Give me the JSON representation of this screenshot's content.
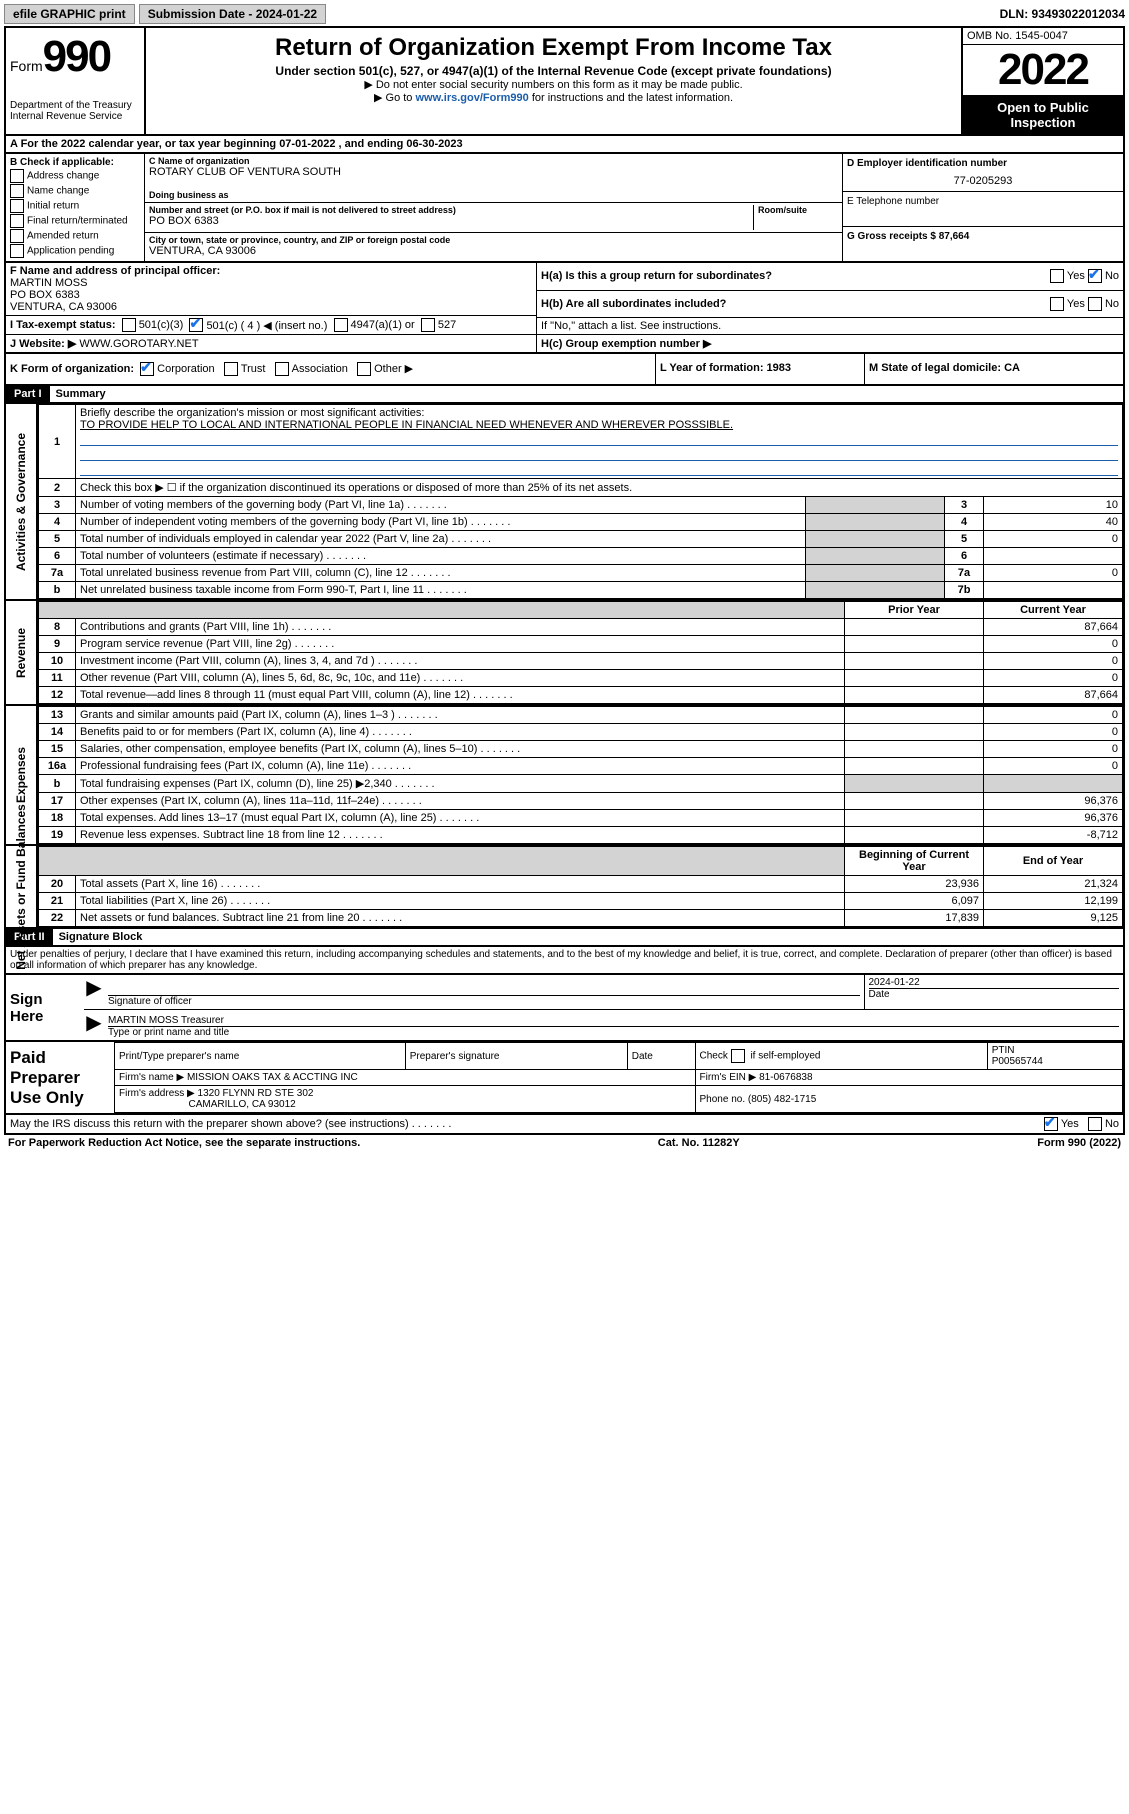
{
  "topbar": {
    "efile": "efile GRAPHIC print",
    "submission_label": "Submission Date - 2024-01-22",
    "dln": "DLN: 93493022012034"
  },
  "header": {
    "form_label": "Form",
    "form_num": "990",
    "title": "Return of Organization Exempt From Income Tax",
    "subtitle": "Under section 501(c), 527, or 4947(a)(1) of the Internal Revenue Code (except private foundations)",
    "note1": "▶ Do not enter social security numbers on this form as it may be made public.",
    "note2_pre": "▶ Go to ",
    "note2_link": "www.irs.gov/Form990",
    "note2_post": " for instructions and the latest information.",
    "dept": "Department of the Treasury\nInternal Revenue Service",
    "omb": "OMB No. 1545-0047",
    "year": "2022",
    "open": "Open to Public Inspection"
  },
  "line_a": "A For the 2022 calendar year, or tax year beginning 07-01-2022   , and ending 06-30-2023",
  "section_b": {
    "label": "B Check if applicable:",
    "items": [
      "Address change",
      "Name change",
      "Initial return",
      "Final return/terminated",
      "Amended return",
      "Application pending"
    ],
    "c_name_label": "C Name of organization",
    "c_name": "ROTARY CLUB OF VENTURA SOUTH",
    "dba_label": "Doing business as",
    "dba": "",
    "addr_label": "Number and street (or P.O. box if mail is not delivered to street address)",
    "addr": "PO BOX 6383",
    "room_label": "Room/suite",
    "city_label": "City or town, state or province, country, and ZIP or foreign postal code",
    "city": "VENTURA, CA  93006",
    "d_label": "D Employer identification number",
    "d_val": "77-0205293",
    "e_label": "E Telephone number",
    "e_val": "",
    "g_label": "G Gross receipts $ 87,664"
  },
  "fghi": {
    "f_label": "F  Name and address of principal officer:",
    "f_name": "MARTIN MOSS",
    "f_addr1": "PO BOX 6383",
    "f_addr2": "VENTURA, CA  93006",
    "i_label": "I   Tax-exempt status:",
    "i_501c3": "501(c)(3)",
    "i_501c4": "501(c) ( 4 ) ◀ (insert no.)",
    "i_4947": "4947(a)(1) or",
    "i_527": "527",
    "j_label": "J   Website: ▶",
    "j_val": "WWW.GOROTARY.NET",
    "ha_label": "H(a)  Is this a group return for subordinates?",
    "hb_label": "H(b)  Are all subordinates included?",
    "hb_note": "If \"No,\" attach a list. See instructions.",
    "hc_label": "H(c)  Group exemption number ▶"
  },
  "kl": {
    "k_label": "K Form of organization:",
    "k_corp": "Corporation",
    "k_trust": "Trust",
    "k_assoc": "Association",
    "k_other": "Other ▶",
    "l_label": "L Year of formation: 1983",
    "m_label": "M State of legal domicile: CA"
  },
  "part1": {
    "header": "Part I",
    "title": "Summary",
    "q1": "Briefly describe the organization's mission or most significant activities:",
    "q1_ans": "TO PROVIDE HELP TO LOCAL AND INTERNATIONAL PEOPLE IN FINANCIAL NEED WHENEVER AND WHEREVER POSSSIBLE.",
    "q2": "Check this box ▶ ☐  if the organization discontinued its operations or disposed of more than 25% of its net assets.",
    "rows_gov": [
      {
        "n": "3",
        "d": "Number of voting members of the governing body (Part VI, line 1a)",
        "b": "3",
        "v": "10"
      },
      {
        "n": "4",
        "d": "Number of independent voting members of the governing body (Part VI, line 1b)",
        "b": "4",
        "v": "40"
      },
      {
        "n": "5",
        "d": "Total number of individuals employed in calendar year 2022 (Part V, line 2a)",
        "b": "5",
        "v": "0"
      },
      {
        "n": "6",
        "d": "Total number of volunteers (estimate if necessary)",
        "b": "6",
        "v": ""
      },
      {
        "n": "7a",
        "d": "Total unrelated business revenue from Part VIII, column (C), line 12",
        "b": "7a",
        "v": "0"
      },
      {
        "n": "b",
        "d": "Net unrelated business taxable income from Form 990-T, Part I, line 11",
        "b": "7b",
        "v": ""
      }
    ],
    "hdr_prior": "Prior Year",
    "hdr_curr": "Current Year",
    "rows_rev": [
      {
        "n": "8",
        "d": "Contributions and grants (Part VIII, line 1h)",
        "p": "",
        "c": "87,664"
      },
      {
        "n": "9",
        "d": "Program service revenue (Part VIII, line 2g)",
        "p": "",
        "c": "0"
      },
      {
        "n": "10",
        "d": "Investment income (Part VIII, column (A), lines 3, 4, and 7d )",
        "p": "",
        "c": "0"
      },
      {
        "n": "11",
        "d": "Other revenue (Part VIII, column (A), lines 5, 6d, 8c, 9c, 10c, and 11e)",
        "p": "",
        "c": "0"
      },
      {
        "n": "12",
        "d": "Total revenue—add lines 8 through 11 (must equal Part VIII, column (A), line 12)",
        "p": "",
        "c": "87,664"
      }
    ],
    "rows_exp": [
      {
        "n": "13",
        "d": "Grants and similar amounts paid (Part IX, column (A), lines 1–3 )",
        "p": "",
        "c": "0"
      },
      {
        "n": "14",
        "d": "Benefits paid to or for members (Part IX, column (A), line 4)",
        "p": "",
        "c": "0"
      },
      {
        "n": "15",
        "d": "Salaries, other compensation, employee benefits (Part IX, column (A), lines 5–10)",
        "p": "",
        "c": "0"
      },
      {
        "n": "16a",
        "d": "Professional fundraising fees (Part IX, column (A), line 11e)",
        "p": "",
        "c": "0"
      },
      {
        "n": "b",
        "d": "Total fundraising expenses (Part IX, column (D), line 25) ▶2,340",
        "p": "GRAY",
        "c": "GRAY"
      },
      {
        "n": "17",
        "d": "Other expenses (Part IX, column (A), lines 11a–11d, 11f–24e)",
        "p": "",
        "c": "96,376"
      },
      {
        "n": "18",
        "d": "Total expenses. Add lines 13–17 (must equal Part IX, column (A), line 25)",
        "p": "",
        "c": "96,376"
      },
      {
        "n": "19",
        "d": "Revenue less expenses. Subtract line 18 from line 12",
        "p": "",
        "c": "-8,712"
      }
    ],
    "hdr_beg": "Beginning of Current Year",
    "hdr_end": "End of Year",
    "rows_net": [
      {
        "n": "20",
        "d": "Total assets (Part X, line 16)",
        "p": "23,936",
        "c": "21,324"
      },
      {
        "n": "21",
        "d": "Total liabilities (Part X, line 26)",
        "p": "6,097",
        "c": "12,199"
      },
      {
        "n": "22",
        "d": "Net assets or fund balances. Subtract line 21 from line 20",
        "p": "17,839",
        "c": "9,125"
      }
    ],
    "side_gov": "Activities & Governance",
    "side_rev": "Revenue",
    "side_exp": "Expenses",
    "side_net": "Net Assets or Fund Balances"
  },
  "part2": {
    "header": "Part II",
    "title": "Signature Block",
    "penalty": "Under penalties of perjury, I declare that I have examined this return, including accompanying schedules and statements, and to the best of my knowledge and belief, it is true, correct, and complete. Declaration of preparer (other than officer) is based on all information of which preparer has any knowledge."
  },
  "sign": {
    "label": "Sign Here",
    "sig_label": "Signature of officer",
    "date_label": "Date",
    "date_val": "2024-01-22",
    "name_val": "MARTIN MOSS Treasurer",
    "name_label": "Type or print name and title"
  },
  "prep": {
    "label": "Paid Preparer Use Only",
    "h1": "Print/Type preparer's name",
    "h2": "Preparer's signature",
    "h3": "Date",
    "h4_a": "Check",
    "h4_b": "if self-employed",
    "h5": "PTIN",
    "ptin": "P00565744",
    "firm_name_label": "Firm's name    ▶",
    "firm_name": "MISSION OAKS TAX & ACCTING INC",
    "firm_ein_label": "Firm's EIN ▶",
    "firm_ein": "81-0676838",
    "firm_addr_label": "Firm's address ▶",
    "firm_addr1": "1320 FLYNN RD STE 302",
    "firm_addr2": "CAMARILLO, CA  93012",
    "phone_label": "Phone no.",
    "phone": "(805) 482-1715"
  },
  "bottom": {
    "q": "May the IRS discuss this return with the preparer shown above? (see instructions)",
    "yes": "Yes",
    "no": "No"
  },
  "footer": {
    "left": "For Paperwork Reduction Act Notice, see the separate instructions.",
    "mid": "Cat. No. 11282Y",
    "right": "Form 990 (2022)"
  }
}
